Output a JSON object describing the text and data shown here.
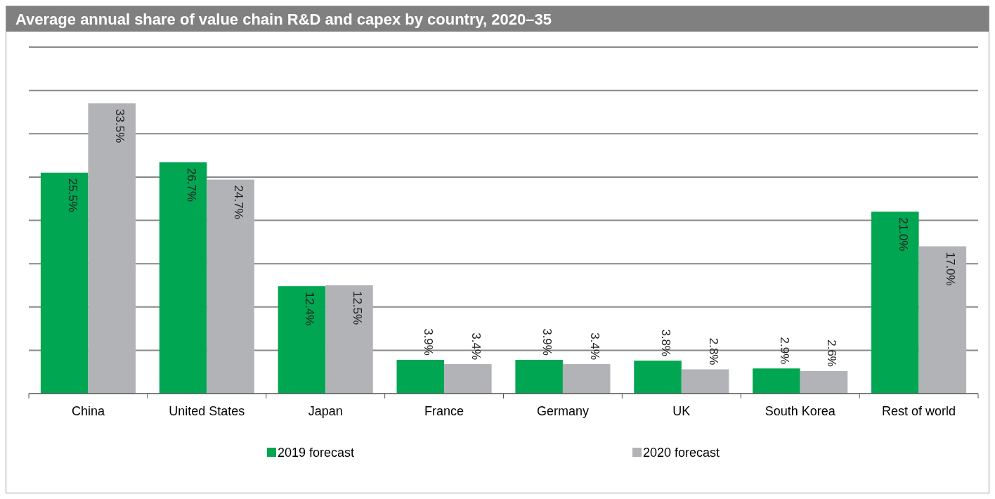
{
  "chart_data": {
    "type": "bar",
    "title": "Average annual share of value chain R&D and capex by country, 2020–35",
    "categories": [
      "China",
      "United States",
      "Japan",
      "France",
      "Germany",
      "UK",
      "South Korea",
      "Rest of world"
    ],
    "series": [
      {
        "name": "2019 forecast",
        "color": "#00a651",
        "values": [
          25.5,
          26.7,
          12.4,
          3.9,
          3.9,
          3.8,
          2.9,
          21.0
        ],
        "value_labels": [
          "25.5%",
          "26.7%",
          "12.4%",
          "3.9%",
          "3.9%",
          "3.8%",
          "2.9%",
          "21.0%"
        ]
      },
      {
        "name": "2020 forecast",
        "color": "#b2b3b7",
        "values": [
          33.5,
          24.7,
          12.5,
          3.4,
          3.4,
          2.8,
          2.6,
          17.0
        ],
        "value_labels": [
          "33.5%",
          "24.7%",
          "12.5%",
          "3.4%",
          "3.4%",
          "2.8%",
          "2.6%",
          "17.0%"
        ]
      }
    ],
    "ylim": [
      0,
      40
    ],
    "yticks": [
      {
        "value": 0,
        "label": null
      },
      {
        "value": 5,
        "label": null
      },
      {
        "value": 10,
        "label": null
      },
      {
        "value": 15,
        "label": null
      },
      {
        "value": 20,
        "label": null
      },
      {
        "value": 25,
        "label": null
      },
      {
        "value": 30,
        "label": null
      },
      {
        "value": 35,
        "label": null
      },
      {
        "value": 40,
        "label": null
      }
    ],
    "grid": "y",
    "legend": "bottom",
    "tick_labels": "x"
  }
}
